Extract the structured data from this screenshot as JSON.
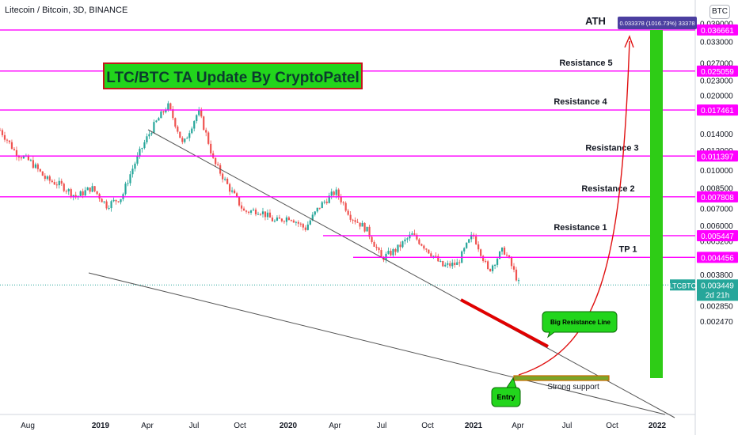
{
  "header": {
    "symbol": "Litecoin / Bitcoin, 3D, BINANCE",
    "currency_button": "BTC"
  },
  "colors": {
    "candle_up": "#26a69a",
    "candle_down": "#ef5350",
    "level_line": "#ff00ff",
    "trend_line": "#555555",
    "resistance_line": "#e00000",
    "target_bar": "#2ecc16",
    "projection_arrow": "#e01010",
    "current_price": "#26a69a",
    "ath_label": "#4b3fa0"
  },
  "chart_data": {
    "type": "candlestick",
    "title": "LTC/BTC TA Update By CryptoPatel",
    "x_ticks": [
      "Aug",
      "2019",
      "Apr",
      "Jul",
      "Oct",
      "2020",
      "Apr",
      "Jul",
      "Oct",
      "2021",
      "Apr",
      "Jul",
      "Oct",
      "2022"
    ],
    "y_ticks": [
      0.039,
      0.033,
      0.027,
      0.023,
      0.02,
      0.014,
      0.012,
      0.01,
      0.0085,
      0.007,
      0.006,
      0.0052,
      0.0038,
      0.00285,
      0.00247
    ],
    "price_path": [
      0.0145,
      0.0118,
      0.0108,
      0.0092,
      0.0087,
      0.0078,
      0.0085,
      0.0072,
      0.0078,
      0.0112,
      0.0148,
      0.0182,
      0.0125,
      0.0172,
      0.0108,
      0.0085,
      0.0068,
      0.0069,
      0.0062,
      0.0065,
      0.0058,
      0.0072,
      0.0082,
      0.0065,
      0.0058,
      0.0044,
      0.0048,
      0.0055,
      0.0048,
      0.0041,
      0.0042,
      0.0055,
      0.0039,
      0.0048,
      0.0035
    ],
    "levels": [
      {
        "label": "ATH",
        "price_label": "0.036661",
        "value": 0.036661
      },
      {
        "label": "Resistance 5",
        "price_label": "0.025059",
        "value": 0.025059
      },
      {
        "label": "Resistance 4",
        "price_label": "0.017461",
        "value": 0.017461
      },
      {
        "label": "Resistance 3",
        "price_label": "0.011397",
        "value": 0.011397
      },
      {
        "label": "Resistance 2",
        "price_label": "0.007808",
        "value": 0.007808
      },
      {
        "label": "Resistance 1",
        "price_label": "0.005447",
        "value": 0.005447
      },
      {
        "label": "TP 1",
        "price_label": "0.004456",
        "value": 0.004456
      }
    ],
    "current_price": {
      "ticker": "LTCBTC",
      "value": "0.003449",
      "countdown": "2d 21h"
    },
    "ath_projection": "0.033378 (1016.73%) 33378",
    "annotations": {
      "big_resistance": "Big Resistance Line",
      "entry": "Entry",
      "strong_support": "Strong support"
    }
  }
}
